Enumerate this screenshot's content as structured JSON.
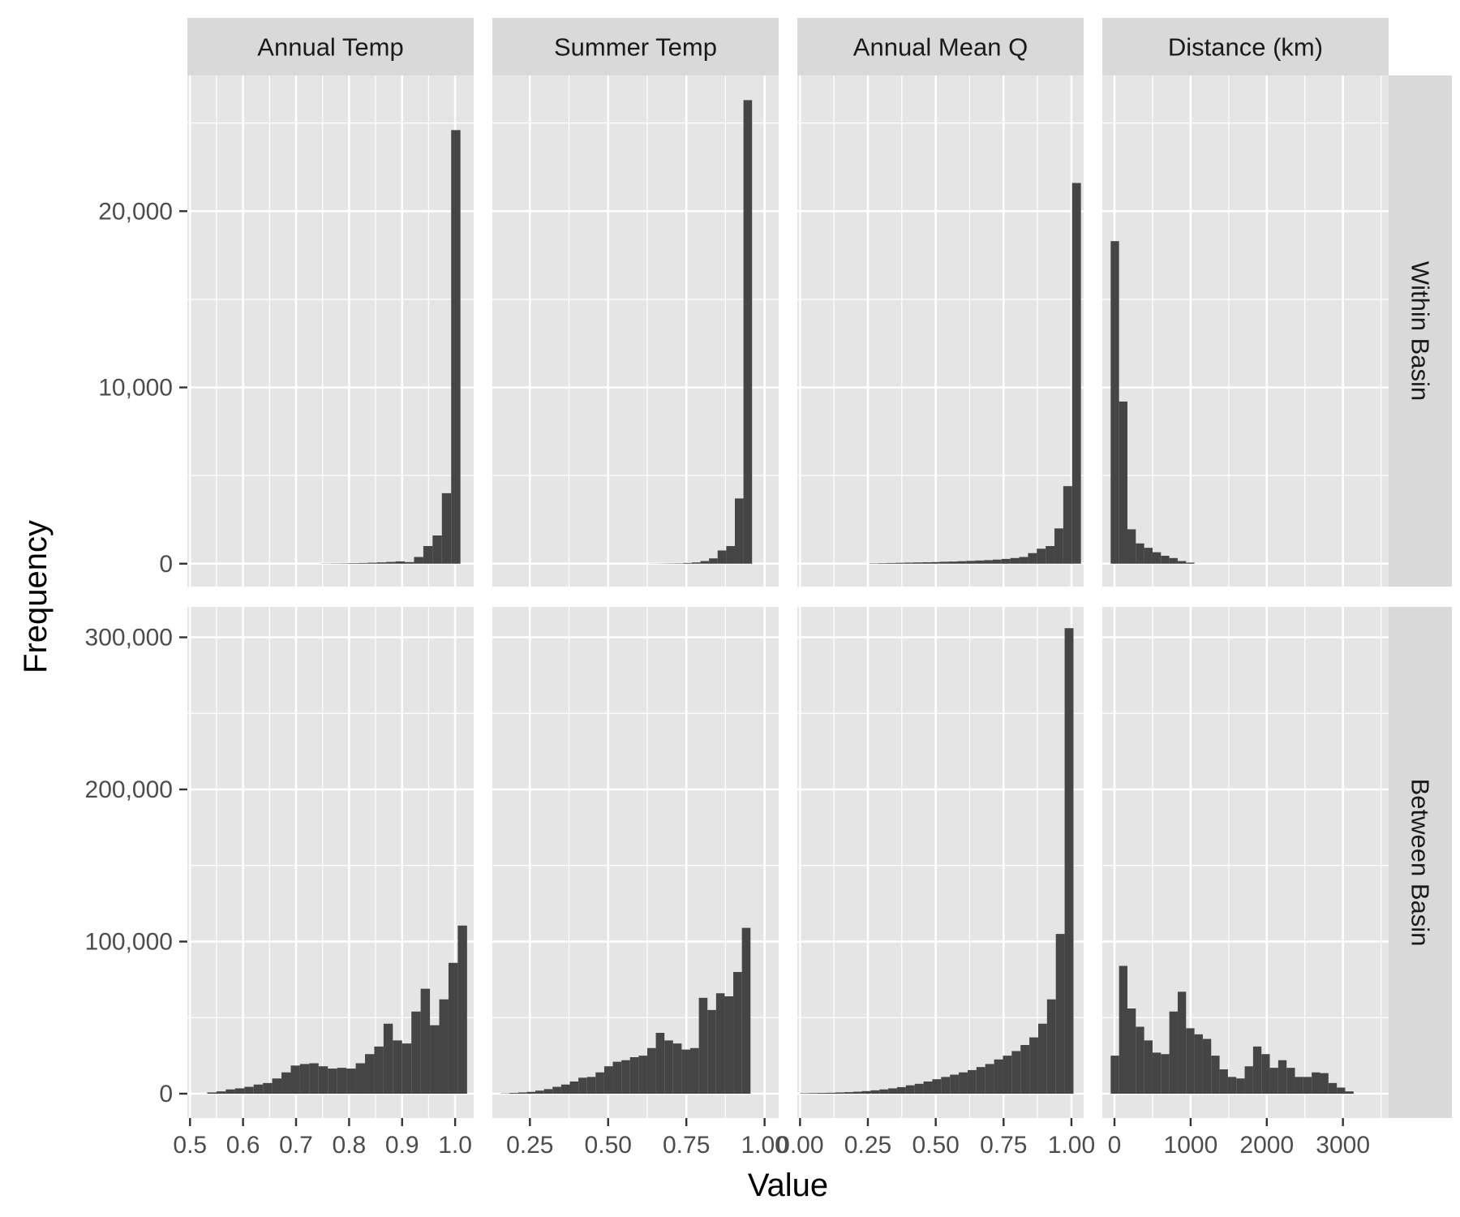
{
  "chart_data": {
    "type": "bar",
    "subtype": "faceted-histogram",
    "xlabel": "Value",
    "ylabel": "Frequency",
    "columns": [
      "Annual Temp",
      "Summer Temp",
      "Annual Mean Q",
      "Distance (km)"
    ],
    "rows": [
      "Within Basin",
      "Between Basin"
    ],
    "free_x": true,
    "grid": true,
    "colors": {
      "panel_bg": "#e5e5e5",
      "strip_bg": "#d9d9d9",
      "bar": "#454545",
      "grid": "#ffffff"
    },
    "x_axes": [
      {
        "range": [
          0.495,
          1.035
        ],
        "ticks": [
          0.5,
          0.6,
          0.7,
          0.8,
          0.9,
          1.0
        ],
        "tick_labels": [
          "0.5",
          "0.6",
          "0.7",
          "0.8",
          "0.9",
          "1.0"
        ]
      },
      {
        "range": [
          0.13,
          1.045
        ],
        "ticks": [
          0.25,
          0.5,
          0.75,
          1.0
        ],
        "tick_labels": [
          "0.25",
          "0.50",
          "0.75",
          "1.00"
        ]
      },
      {
        "range": [
          -0.01,
          1.045
        ],
        "ticks": [
          0.0,
          0.25,
          0.5,
          0.75,
          1.0
        ],
        "tick_labels": [
          "0.00",
          "0.25",
          "0.50",
          "0.75",
          "1.00"
        ]
      },
      {
        "range": [
          -160,
          3600
        ],
        "ticks": [
          0,
          1000,
          2000,
          3000
        ],
        "tick_labels": [
          "0",
          "1000",
          "2000",
          "3000"
        ]
      }
    ],
    "y_axes": [
      {
        "range": [
          -1300,
          27700
        ],
        "ticks": [
          0,
          10000,
          20000
        ],
        "tick_labels": [
          "0",
          "10,000",
          "20,000"
        ]
      },
      {
        "range": [
          -16000,
          320000
        ],
        "ticks": [
          0,
          100000,
          200000,
          300000
        ],
        "tick_labels": [
          "0",
          "100,000",
          "200,000",
          "300,000"
        ]
      }
    ],
    "panels": [
      {
        "row": "Within Basin",
        "column": "Annual Temp",
        "bin_start": 0.7475,
        "bin_width": 0.0175,
        "values": [
          10,
          15,
          20,
          30,
          40,
          55,
          75,
          100,
          130,
          90,
          380,
          1000,
          1600,
          4000,
          24600
        ]
      },
      {
        "row": "Within Basin",
        "column": "Summer Temp",
        "bin_start": 0.63,
        "bin_width": 0.0275,
        "values": [
          5,
          10,
          15,
          20,
          40,
          70,
          150,
          300,
          750,
          1000,
          3700,
          26300
        ]
      },
      {
        "row": "Within Basin",
        "column": "Annual Mean Q",
        "bin_start": 0.255,
        "bin_width": 0.0325,
        "values": [
          20,
          30,
          40,
          50,
          60,
          70,
          80,
          90,
          110,
          120,
          140,
          160,
          180,
          200,
          230,
          270,
          320,
          380,
          600,
          850,
          1000,
          2000,
          4400,
          21600
        ]
      },
      {
        "row": "Within Basin",
        "column": "Distance (km)",
        "bin_start": -50,
        "bin_width": 110,
        "values": [
          18300,
          9200,
          1950,
          1150,
          900,
          650,
          450,
          320,
          150,
          60
        ]
      },
      {
        "row": "Between Basin",
        "column": "Annual Temp",
        "bin_start": 0.5325,
        "bin_width": 0.0175,
        "values": [
          800,
          1500,
          2800,
          3500,
          4500,
          6000,
          7000,
          10000,
          14000,
          18500,
          19500,
          20000,
          18000,
          16500,
          17000,
          16500,
          20000,
          26000,
          31000,
          46000,
          35000,
          33000,
          54000,
          69000,
          45000,
          62000,
          86000,
          110500
        ]
      },
      {
        "row": "Between Basin",
        "column": "Summer Temp",
        "bin_start": 0.1575,
        "bin_width": 0.0275,
        "values": [
          200,
          500,
          800,
          1200,
          2000,
          3000,
          4500,
          6000,
          8000,
          10500,
          11000,
          14000,
          18000,
          21000,
          22000,
          24000,
          25000,
          30000,
          40000,
          35000,
          33000,
          29000,
          30000,
          63000,
          55000,
          66000,
          64000,
          80000,
          109000
        ]
      },
      {
        "row": "Between Basin",
        "column": "Annual Mean Q",
        "bin_start": 0.0,
        "bin_width": 0.0325,
        "values": [
          300,
          400,
          500,
          600,
          800,
          1000,
          1300,
          1700,
          2200,
          2800,
          3500,
          4300,
          5500,
          6500,
          8000,
          9500,
          11000,
          12500,
          14000,
          15500,
          17500,
          19500,
          22500,
          25000,
          28000,
          32000,
          37000,
          46000,
          62000,
          105000,
          306000
        ]
      },
      {
        "row": "Between Basin",
        "column": "Distance (km)",
        "bin_start": -50,
        "bin_width": 110,
        "values": [
          25000,
          84000,
          56000,
          44000,
          35000,
          27000,
          26000,
          54000,
          67000,
          43000,
          39000,
          36000,
          25000,
          16000,
          11000,
          10000,
          18000,
          31000,
          26000,
          17000,
          22000,
          17000,
          11000,
          11000,
          14000,
          13500,
          7000,
          4000,
          1500
        ]
      }
    ]
  }
}
